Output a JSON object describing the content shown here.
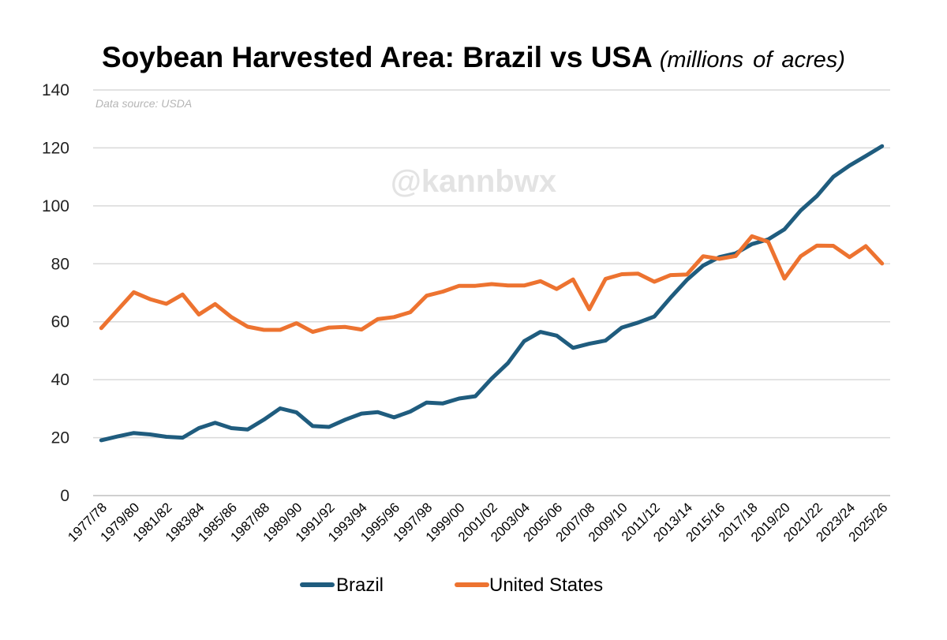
{
  "chart_data": {
    "type": "line",
    "title": "Soybean Harvested Area: Brazil vs USA",
    "title_units": "(millions of acres)",
    "source_note": "Data source: USDA",
    "watermark": "@kannbwx",
    "xlabel": "",
    "ylabel": "",
    "ylim": [
      0,
      140
    ],
    "yticks": [
      0,
      20,
      40,
      60,
      80,
      100,
      120,
      140
    ],
    "grid": "horizontal",
    "legend_position": "bottom",
    "categories": [
      "1977/78",
      "1978/79",
      "1979/80",
      "1980/81",
      "1981/82",
      "1982/83",
      "1983/84",
      "1984/85",
      "1985/86",
      "1986/87",
      "1987/88",
      "1988/89",
      "1989/90",
      "1990/91",
      "1991/92",
      "1992/93",
      "1993/94",
      "1994/95",
      "1995/96",
      "1996/97",
      "1997/98",
      "1998/99",
      "1999/00",
      "2000/01",
      "2001/02",
      "2002/03",
      "2003/04",
      "2004/05",
      "2005/06",
      "2006/07",
      "2007/08",
      "2008/09",
      "2009/10",
      "2010/11",
      "2011/12",
      "2012/13",
      "2013/14",
      "2014/15",
      "2015/16",
      "2016/17",
      "2017/18",
      "2018/19",
      "2019/20",
      "2020/21",
      "2021/22",
      "2022/23",
      "2023/24",
      "2024/25",
      "2025/26"
    ],
    "xtick_labels": [
      "1977/78",
      "1979/80",
      "1981/82",
      "1983/84",
      "1985/86",
      "1987/88",
      "1989/90",
      "1991/92",
      "1993/94",
      "1995/96",
      "1997/98",
      "1999/00",
      "2001/02",
      "2003/04",
      "2005/06",
      "2007/08",
      "2009/10",
      "2011/12",
      "2013/14",
      "2015/16",
      "2017/18",
      "2019/20",
      "2021/22",
      "2023/24",
      "2025/26"
    ],
    "series": [
      {
        "name": "Brazil",
        "color": "#1f5c7e",
        "values": [
          19.1,
          20.4,
          21.6,
          21.1,
          20.3,
          20.0,
          23.3,
          25.1,
          23.3,
          22.8,
          26.2,
          30.1,
          28.7,
          24.0,
          23.7,
          26.2,
          28.3,
          28.8,
          27.0,
          29.0,
          32.1,
          31.8,
          33.5,
          34.3,
          40.4,
          45.7,
          53.3,
          56.5,
          55.2,
          51.0,
          52.4,
          53.5,
          58.0,
          59.7,
          61.8,
          68.3,
          74.4,
          79.4,
          82.3,
          83.6,
          86.8,
          88.4,
          91.9,
          98.4,
          103.4,
          110.0,
          113.9,
          117.2,
          120.6
        ]
      },
      {
        "name": "United States",
        "color": "#ed7330",
        "values": [
          57.8,
          64.0,
          70.2,
          67.8,
          66.2,
          69.4,
          62.5,
          66.1,
          61.6,
          58.3,
          57.2,
          57.2,
          59.5,
          56.5,
          58.0,
          58.2,
          57.3,
          60.9,
          61.6,
          63.3,
          69.0,
          70.4,
          72.4,
          72.4,
          73.0,
          72.5,
          72.5,
          74.0,
          71.3,
          74.6,
          64.3,
          74.8,
          76.4,
          76.6,
          73.8,
          76.1,
          76.3,
          82.6,
          81.7,
          82.7,
          89.5,
          87.6,
          74.9,
          82.6,
          86.3,
          86.2,
          82.3,
          86.1,
          80.1
        ]
      }
    ]
  }
}
